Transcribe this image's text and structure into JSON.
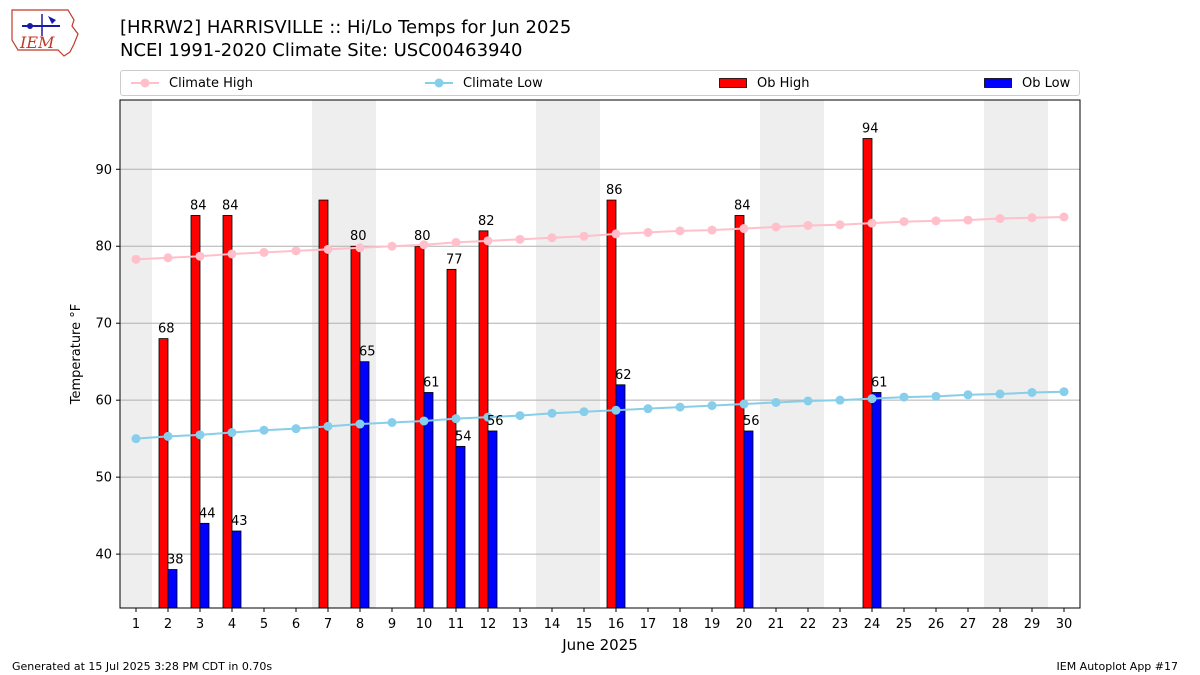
{
  "header": {
    "title_line1": "[HRRW2] HARRISVILLE :: Hi/Lo Temps for Jun 2025",
    "title_line2": "NCEI 1991-2020 Climate Site: USC00463940",
    "logo_text": "IEM"
  },
  "footer": {
    "left": "Generated at 15 Jul 2025 3:28 PM CDT in 0.70s",
    "right": "IEM Autoplot App #17"
  },
  "legend": [
    {
      "label": "Climate High",
      "color": "#FFC0CB",
      "kind": "line"
    },
    {
      "label": "Climate Low",
      "color": "#87CEEB",
      "kind": "line"
    },
    {
      "label": "Ob High",
      "color": "#FF0000",
      "kind": "bar"
    },
    {
      "label": "Ob Low",
      "color": "#0000FF",
      "kind": "bar"
    }
  ],
  "chart_data": {
    "type": "bar",
    "xlabel": "June 2025",
    "ylabel": "Temperature °F",
    "x": [
      1,
      2,
      3,
      4,
      5,
      6,
      7,
      8,
      9,
      10,
      11,
      12,
      13,
      14,
      15,
      16,
      17,
      18,
      19,
      20,
      21,
      22,
      23,
      24,
      25,
      26,
      27,
      28,
      29,
      30
    ],
    "xlim": [
      0.5,
      30.5
    ],
    "ylim": [
      33,
      99
    ],
    "yticks": [
      40,
      50,
      60,
      70,
      80,
      90
    ],
    "grid": "horizontal",
    "legend_position": "top",
    "weekend_shading": [
      [
        0.5,
        1.5
      ],
      [
        6.5,
        8.5
      ],
      [
        13.5,
        15.5
      ],
      [
        20.5,
        22.5
      ],
      [
        27.5,
        29.5
      ]
    ],
    "series": [
      {
        "name": "Ob High",
        "type": "bar",
        "color": "#FF0000",
        "values": [
          null,
          68,
          84,
          84,
          null,
          null,
          86,
          80,
          null,
          80,
          77,
          82,
          null,
          null,
          null,
          86,
          null,
          null,
          null,
          84,
          null,
          null,
          null,
          94,
          null,
          null,
          null,
          null,
          null,
          null
        ],
        "labels": [
          "",
          "68",
          "84",
          "84",
          "",
          "",
          "",
          "80",
          "",
          "80",
          "77",
          "82",
          "",
          "",
          "",
          "86",
          "",
          "",
          "",
          "84",
          "",
          "",
          "",
          "94",
          "",
          "",
          "",
          "",
          "",
          ""
        ]
      },
      {
        "name": "Ob Low",
        "type": "bar",
        "color": "#0000FF",
        "values": [
          null,
          38,
          44,
          43,
          null,
          null,
          null,
          65,
          null,
          61,
          54,
          56,
          null,
          null,
          null,
          62,
          null,
          null,
          null,
          56,
          null,
          null,
          null,
          61,
          null,
          null,
          null,
          null,
          null,
          null
        ],
        "labels": [
          "",
          "38",
          "44",
          "43",
          "",
          "",
          "",
          "65",
          "",
          "61",
          "54",
          "56",
          "",
          "",
          "",
          "62",
          "",
          "",
          "",
          "56",
          "",
          "",
          "",
          "61",
          "",
          "",
          "",
          "",
          "",
          ""
        ]
      },
      {
        "name": "Climate High",
        "type": "line",
        "color": "#FFC0CB",
        "values": [
          78.3,
          78.5,
          78.7,
          79.0,
          79.2,
          79.4,
          79.6,
          79.8,
          80.0,
          80.2,
          80.5,
          80.7,
          80.9,
          81.1,
          81.3,
          81.6,
          81.8,
          82.0,
          82.1,
          82.3,
          82.5,
          82.7,
          82.8,
          83.0,
          83.2,
          83.3,
          83.4,
          83.6,
          83.7,
          83.8
        ]
      },
      {
        "name": "Climate Low",
        "type": "line",
        "color": "#87CEEB",
        "values": [
          55.0,
          55.3,
          55.5,
          55.8,
          56.1,
          56.3,
          56.6,
          56.9,
          57.1,
          57.3,
          57.6,
          57.8,
          58.0,
          58.3,
          58.5,
          58.7,
          58.9,
          59.1,
          59.3,
          59.5,
          59.7,
          59.9,
          60.0,
          60.2,
          60.4,
          60.5,
          60.7,
          60.8,
          61.0,
          61.1
        ]
      }
    ]
  }
}
